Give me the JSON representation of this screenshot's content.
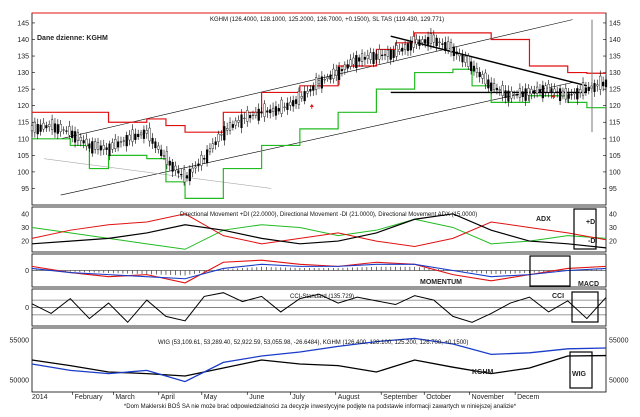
{
  "page": {
    "footnote": "*Dom Maklerski BOŚ SA nie może brać odpowiedzialności za decyzje inwestycyjne podjęte na podstawie informacji zawartych w niniejszej analizie*"
  },
  "colors": {
    "price": "#000000",
    "upper_band": "#e11010",
    "lower_band": "#22bb22",
    "channel": "#000000",
    "plus_di": "#22bb22",
    "minus_di": "#e11010",
    "adx": "#000000",
    "momentum": "#e11010",
    "macd": "#1a3cc8",
    "cci": "#000000",
    "wig": "#000000",
    "kghm": "#1a3cc8",
    "hline": "#e11010"
  },
  "chart_data": [
    {
      "id": "price",
      "type": "candlestick",
      "title": "Dane dzienne: KGHM",
      "header": "KGHM (126.4000, 128.1000, 125.2000, 126.7000, +0.1500), SL TAS (119.430, 129.771)",
      "ylim": [
        90,
        148
      ],
      "yticks": [
        95,
        100,
        105,
        110,
        115,
        120,
        125,
        130,
        135,
        140,
        145
      ],
      "hline": 148,
      "series": [
        {
          "name": "KGHM",
          "x": [
            0,
            8,
            16,
            24,
            32,
            40,
            48,
            56,
            64,
            72,
            80,
            88,
            96,
            104,
            112,
            120,
            128,
            136,
            144,
            152,
            160,
            168,
            176,
            184,
            192,
            200,
            208,
            216,
            224,
            232,
            240
          ],
          "values": [
            113,
            114,
            112,
            108,
            107,
            110,
            112,
            104,
            98,
            104,
            112,
            116,
            118,
            119,
            122,
            127,
            130,
            134,
            135,
            136,
            139,
            140,
            137,
            132,
            126,
            123,
            124,
            125,
            123,
            125,
            127
          ]
        },
        {
          "name": "SL TAS upper",
          "x": [
            0,
            16,
            32,
            48,
            56,
            64,
            80,
            96,
            112,
            128,
            144,
            152,
            160,
            176,
            192,
            208,
            224,
            232,
            240
          ],
          "values": [
            118,
            118,
            115,
            116,
            114,
            112,
            118,
            124,
            126,
            132,
            137,
            139,
            142,
            142,
            140,
            132,
            130,
            129.8,
            129.8
          ]
        },
        {
          "name": "SL TAS lower",
          "x": [
            0,
            16,
            24,
            32,
            48,
            56,
            64,
            80,
            96,
            112,
            128,
            144,
            160,
            176,
            184,
            192,
            208,
            224,
            232,
            240
          ],
          "values": [
            110,
            108,
            101,
            105,
            104,
            97,
            92,
            101,
            108,
            113,
            118,
            125,
            130,
            131,
            126,
            121,
            123,
            121,
            119.4,
            119.4
          ]
        }
      ]
    },
    {
      "id": "dmi",
      "type": "line",
      "header": "Directional Movement +DI (22.0000), Directional Movement -DI (21.0000), Directional Movement ADX (15.0000)",
      "ylim": [
        12,
        45
      ],
      "yticks": [
        20,
        30,
        40
      ],
      "tags": {
        "adx": "ADX",
        "plus": "+DI",
        "minus": "-DI"
      },
      "series": [
        {
          "name": "+DI",
          "x": [
            0,
            16,
            32,
            48,
            64,
            80,
            96,
            112,
            128,
            144,
            160,
            176,
            192,
            208,
            224,
            240
          ],
          "values": [
            30,
            26,
            22,
            18,
            14,
            28,
            32,
            30,
            24,
            28,
            36,
            30,
            18,
            20,
            24,
            22
          ]
        },
        {
          "name": "-DI",
          "x": [
            0,
            16,
            32,
            48,
            64,
            80,
            96,
            112,
            128,
            144,
            160,
            176,
            192,
            208,
            224,
            240
          ],
          "values": [
            22,
            28,
            32,
            34,
            40,
            24,
            18,
            22,
            26,
            20,
            16,
            22,
            34,
            30,
            26,
            21
          ]
        },
        {
          "name": "ADX",
          "x": [
            0,
            16,
            32,
            48,
            64,
            80,
            96,
            112,
            128,
            144,
            160,
            176,
            192,
            208,
            224,
            240
          ],
          "values": [
            18,
            20,
            22,
            26,
            32,
            28,
            22,
            18,
            20,
            26,
            36,
            40,
            28,
            20,
            18,
            15
          ]
        }
      ]
    },
    {
      "id": "momentum_macd",
      "type": "line",
      "yticks": [
        0
      ],
      "tags": {
        "momentum": "MOMENTUM",
        "macd": "MACD"
      },
      "series": [
        {
          "name": "MOMENTUM",
          "x": [
            0,
            16,
            32,
            48,
            64,
            80,
            96,
            112,
            128,
            144,
            160,
            176,
            192,
            208,
            224,
            240
          ],
          "values": [
            2,
            -1,
            -3,
            -2,
            -6,
            4,
            5,
            3,
            2,
            4,
            3,
            -2,
            -5,
            -2,
            1,
            2
          ]
        },
        {
          "name": "MACD",
          "x": [
            0,
            16,
            32,
            48,
            64,
            80,
            96,
            112,
            128,
            144,
            160,
            176,
            192,
            208,
            224,
            240
          ],
          "values": [
            1,
            -1,
            -2,
            -3,
            -4,
            1,
            3,
            2,
            2,
            3,
            3,
            0,
            -3,
            -2,
            0,
            1
          ]
        }
      ]
    },
    {
      "id": "cci",
      "type": "line",
      "header": "CCI-Standard (135.729)",
      "ylim": [
        -250,
        250
      ],
      "yticks": [
        0
      ],
      "tag": "CCI",
      "series": [
        {
          "name": "CCI",
          "x": [
            0,
            8,
            16,
            24,
            32,
            40,
            48,
            56,
            64,
            72,
            80,
            88,
            96,
            104,
            112,
            120,
            128,
            136,
            144,
            152,
            160,
            168,
            176,
            184,
            192,
            200,
            208,
            216,
            224,
            232,
            240
          ],
          "values": [
            50,
            -80,
            120,
            -150,
            60,
            -200,
            100,
            -120,
            -180,
            150,
            200,
            80,
            150,
            -60,
            120,
            180,
            60,
            140,
            90,
            40,
            160,
            100,
            -120,
            -200,
            -80,
            60,
            140,
            -60,
            90,
            -150,
            136
          ]
        }
      ]
    },
    {
      "id": "wig",
      "type": "line",
      "header": "WIG (53,109.61, 53,289.40, 52,922.59, 53,055.98, -26.6484), KGHM (126.400, 128.100, 125.200, 126.700, +0.1500)",
      "yticks_left": [
        50000,
        55000
      ],
      "yticks_right": [
        50000,
        55000
      ],
      "tags": {
        "kghm": "KGHM",
        "wig": "WIG"
      },
      "series": [
        {
          "name": "WIG",
          "x": [
            0,
            16,
            32,
            48,
            64,
            80,
            96,
            112,
            128,
            144,
            160,
            176,
            192,
            208,
            224,
            240
          ],
          "values": [
            52500,
            51800,
            51000,
            50800,
            50500,
            51500,
            52500,
            52000,
            51800,
            51000,
            52500,
            51600,
            50800,
            51500,
            53000,
            53056
          ]
        },
        {
          "name": "KGHM",
          "x": [
            0,
            16,
            32,
            48,
            64,
            80,
            96,
            112,
            128,
            144,
            160,
            176,
            192,
            208,
            224,
            240
          ],
          "values": [
            52000,
            51200,
            50800,
            51200,
            49800,
            52200,
            53000,
            53500,
            54200,
            54800,
            55200,
            54500,
            53200,
            53400,
            53900,
            54000
          ]
        }
      ]
    }
  ],
  "x_axis": {
    "year": "2014",
    "months": [
      "February",
      "March",
      "April",
      "May",
      "June",
      "July",
      "August",
      "September",
      "October",
      "November",
      "Decem"
    ],
    "month_x": [
      17,
      34,
      53,
      71,
      90,
      108,
      127,
      146,
      164,
      183,
      202
    ]
  }
}
